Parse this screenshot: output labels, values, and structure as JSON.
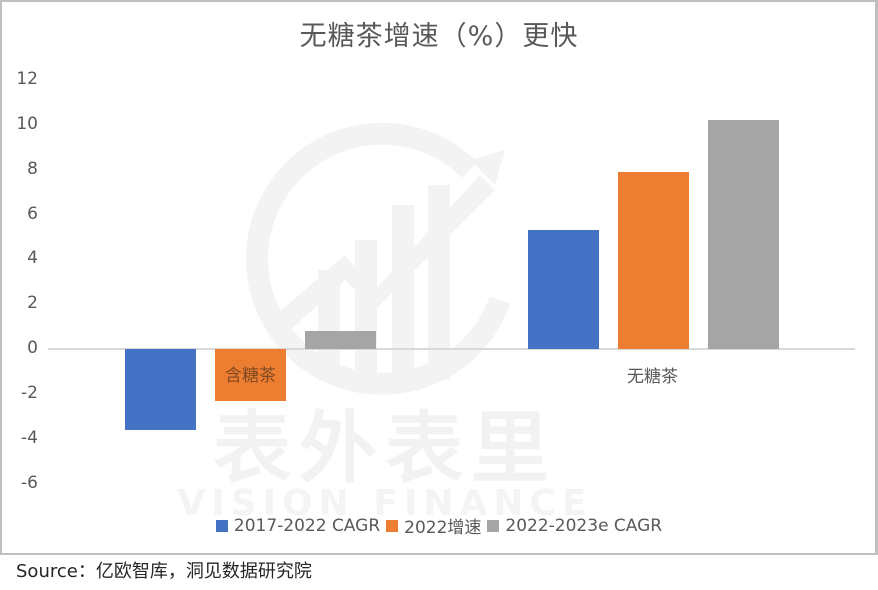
{
  "chart_data": {
    "type": "bar",
    "title": "无糖茶增速（%）更快",
    "xlabel": "",
    "ylabel": "",
    "ylim": [
      -6,
      12
    ],
    "yticks": [
      12,
      10,
      8,
      6,
      4,
      2,
      0,
      -2,
      -4,
      -6
    ],
    "grid": false,
    "legend_position": "bottom",
    "categories": [
      "含糖茶",
      "无糖茶"
    ],
    "series": [
      {
        "name": "2017-2022 CAGR",
        "color": "#4472c4",
        "values": [
          -3.6,
          5.3
        ]
      },
      {
        "name": "2022增速",
        "color": "#ed7d31",
        "values": [
          -2.3,
          7.9
        ]
      },
      {
        "name": "2022-2023e CAGR",
        "color": "#a5a5a5",
        "values": [
          0.8,
          10.2
        ]
      }
    ]
  },
  "ytick_labels": [
    "12",
    "10",
    "8",
    "6",
    "4",
    "2",
    "0",
    "-2",
    "-4",
    "-6"
  ],
  "legend": [
    {
      "label": "2017-2022 CAGR",
      "color": "#4472c4"
    },
    {
      "label": "2022增速",
      "color": "#ed7d31"
    },
    {
      "label": "2022-2023e CAGR",
      "color": "#a5a5a5"
    }
  ],
  "watermark": {
    "cn": "表外表里",
    "en": "VISION FINANCE"
  },
  "source": "Source：亿欧智库，洞见数据研究院"
}
